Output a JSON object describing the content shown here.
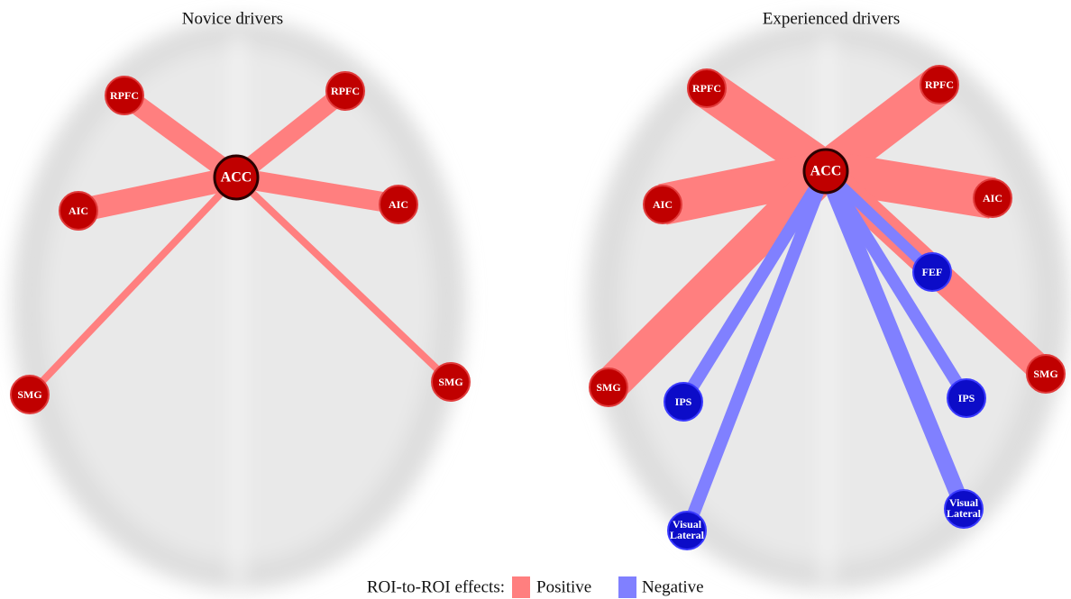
{
  "panels": [
    {
      "title": "Novice drivers",
      "nodes": [
        {
          "label": "ACC"
        },
        {
          "label": "RPFC"
        },
        {
          "label": "RPFC"
        },
        {
          "label": "AIC"
        },
        {
          "label": "AIC"
        },
        {
          "label": "SMG"
        },
        {
          "label": "SMG"
        }
      ]
    },
    {
      "title": "Experienced drivers",
      "nodes": [
        {
          "label": "ACC"
        },
        {
          "label": "RPFC"
        },
        {
          "label": "RPFC"
        },
        {
          "label": "AIC"
        },
        {
          "label": "AIC"
        },
        {
          "label": "SMG"
        },
        {
          "label": "SMG"
        },
        {
          "label": "FEF"
        },
        {
          "label": "IPS"
        },
        {
          "label": "IPS"
        },
        {
          "label": [
            "Visual",
            "Lateral"
          ]
        },
        {
          "label": [
            "Visual",
            "Lateral"
          ]
        }
      ]
    }
  ],
  "legend": {
    "title": "ROI-to-ROI effects:",
    "items": [
      "Positive",
      "Negative"
    ]
  }
}
